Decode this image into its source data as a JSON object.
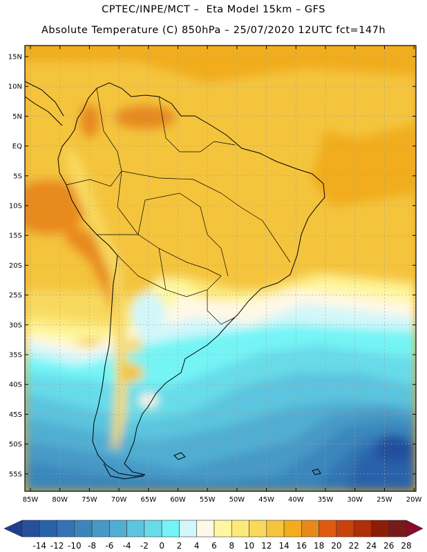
{
  "header": {
    "title_line1": "CPTEC/INPE/MCT –  Eta Model 15km – GFS",
    "title_line2": "Absolute Temperature (C) 850hPa – 25/07/2020 12UTC fct=147h"
  },
  "map": {
    "lat_labels": [
      "15N",
      "10N",
      "5N",
      "EQ",
      "5S",
      "10S",
      "15S",
      "20S",
      "25S",
      "30S",
      "35S",
      "40S",
      "45S",
      "50S",
      "55S"
    ],
    "lon_labels": [
      "85W",
      "80W",
      "75W",
      "70W",
      "65W",
      "60W",
      "55W",
      "50W",
      "45W",
      "40W",
      "35W",
      "30W",
      "25W",
      "20W"
    ]
  },
  "colorbar": {
    "labels": [
      "-14",
      "-12",
      "-10",
      "-8",
      "-6",
      "-4",
      "-2",
      "0",
      "2",
      "4",
      "6",
      "8",
      "10",
      "12",
      "14",
      "16",
      "18",
      "20",
      "22",
      "24",
      "26",
      "28"
    ],
    "colors": [
      "#1d3f8f",
      "#24509c",
      "#2a62aa",
      "#3274b4",
      "#3a86bc",
      "#4699c6",
      "#51aed2",
      "#5cc4de",
      "#67dbe9",
      "#74f4f6",
      "#d1f7fa",
      "#fff8e6",
      "#fef7a1",
      "#fce97a",
      "#f8d95e",
      "#f4c43c",
      "#f1ad1d",
      "#e8891c",
      "#de5a10",
      "#c8420b",
      "#b02e08",
      "#8e1d06",
      "#781a1a",
      "#8b0a25"
    ]
  }
}
